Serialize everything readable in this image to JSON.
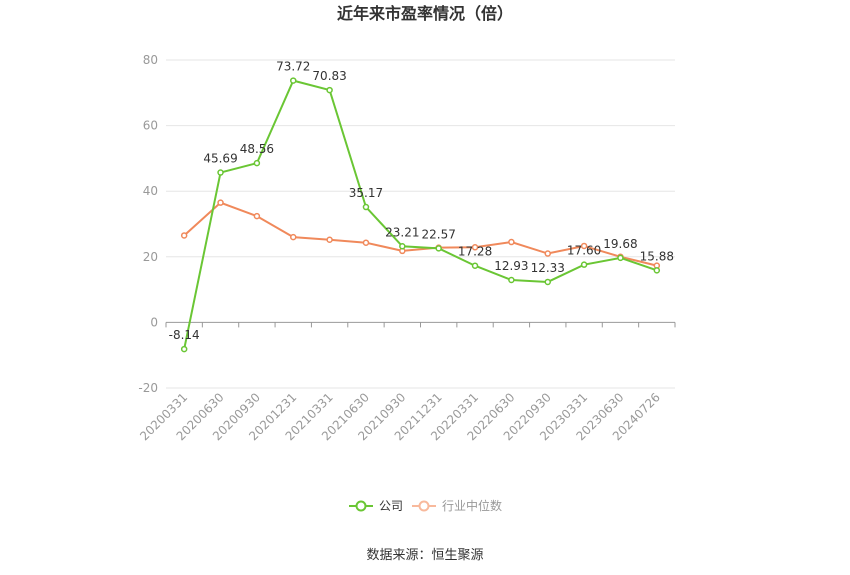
{
  "chart_data": {
    "type": "line",
    "title": "近年来市盈率情况（倍）",
    "categories": [
      "20200331",
      "20200630",
      "20200930",
      "20201231",
      "20210331",
      "20210630",
      "20210930",
      "20211231",
      "20220331",
      "20220630",
      "20220930",
      "20230331",
      "20230630",
      "20240726"
    ],
    "series": [
      {
        "name": "公司",
        "color": "#6ac634",
        "values": [
          -8.14,
          45.69,
          48.56,
          73.72,
          70.83,
          35.17,
          23.21,
          22.57,
          17.28,
          12.93,
          12.33,
          17.6,
          19.68,
          15.88
        ],
        "labels": [
          "-8.14",
          "45.69",
          "48.56",
          "73.72",
          "70.83",
          "35.17",
          "23.21",
          "22.57",
          "17.28",
          "12.93",
          "12.33",
          "17.60",
          "19.68",
          "15.88"
        ]
      },
      {
        "name": "行业中位数",
        "color": "#f0895b",
        "values": [
          26.5,
          36.5,
          32.4,
          26.0,
          25.2,
          24.3,
          21.8,
          22.8,
          22.9,
          24.5,
          21.0,
          23.3,
          20.0,
          17.3
        ]
      }
    ],
    "y_ticks": [
      "80",
      "60",
      "40",
      "20",
      "0",
      "-20"
    ],
    "ylim": [
      -20,
      80
    ],
    "grid": true,
    "legend_position": "bottom-center"
  },
  "source": "数据来源：恒生聚源"
}
